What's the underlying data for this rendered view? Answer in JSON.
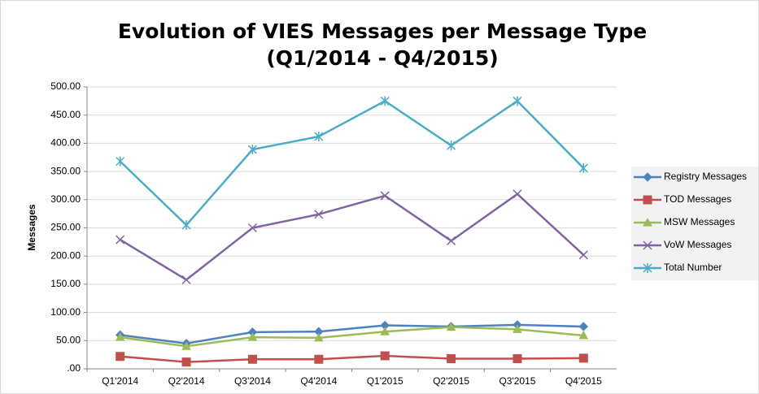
{
  "chart_data": {
    "type": "line",
    "title": "Evolution of VIES Messages per Message Type",
    "subtitle": "(Q1/2014 - Q4/2015)",
    "y_label": "Messages",
    "categories": [
      "Q1'2014",
      "Q2'2014",
      "Q3'2014",
      "Q4'2014",
      "Q1'2015",
      "Q2'2015",
      "Q3'2015",
      "Q4'2015"
    ],
    "series": [
      {
        "name": "Registry Messages",
        "color": "#4f81bd",
        "marker": "diamond",
        "values": [
          60,
          45,
          65,
          66,
          77,
          75,
          78,
          75
        ]
      },
      {
        "name": "TOD Messages",
        "color": "#c0504d",
        "marker": "square",
        "values": [
          22,
          12,
          17,
          17,
          23,
          18,
          18,
          19
        ]
      },
      {
        "name": "MSW Messages",
        "color": "#9bbb59",
        "marker": "triangle",
        "values": [
          56,
          40,
          56,
          55,
          66,
          74,
          70,
          59
        ]
      },
      {
        "name": "VoW Messages",
        "color": "#8064a2",
        "marker": "x",
        "values": [
          229,
          158,
          250,
          274,
          307,
          227,
          310,
          202
        ]
      },
      {
        "name": "Total Number",
        "color": "#4bacc6",
        "marker": "star",
        "values": [
          368,
          255,
          389,
          412,
          475,
          396,
          475,
          356
        ]
      }
    ],
    "ylim": [
      0,
      500
    ],
    "yticks": [
      {
        "value": 0,
        "label": ".00"
      },
      {
        "value": 50,
        "label": "50.00"
      },
      {
        "value": 100,
        "label": "100.00"
      },
      {
        "value": 150,
        "label": "150.00"
      },
      {
        "value": 200,
        "label": "200.00"
      },
      {
        "value": 250,
        "label": "250.00"
      },
      {
        "value": 300,
        "label": "300.00"
      },
      {
        "value": 350,
        "label": "350.00"
      },
      {
        "value": 400,
        "label": "400.00"
      },
      {
        "value": 450,
        "label": "450.00"
      },
      {
        "value": 500,
        "label": "500.00"
      }
    ],
    "grid": true,
    "legend": "right"
  }
}
